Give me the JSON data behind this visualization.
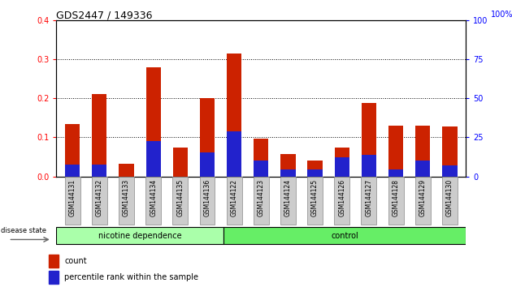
{
  "title": "GDS2447 / 149336",
  "samples": [
    "GSM144131",
    "GSM144132",
    "GSM144133",
    "GSM144134",
    "GSM144135",
    "GSM144136",
    "GSM144122",
    "GSM144123",
    "GSM144124",
    "GSM144125",
    "GSM144126",
    "GSM144127",
    "GSM144128",
    "GSM144129",
    "GSM144130"
  ],
  "count_values": [
    0.135,
    0.21,
    0.033,
    0.28,
    0.075,
    0.2,
    0.315,
    0.096,
    0.058,
    0.04,
    0.075,
    0.188,
    0.13,
    0.13,
    0.128
  ],
  "percentile_values": [
    0.03,
    0.03,
    0.0,
    0.09,
    0.0,
    0.062,
    0.115,
    0.04,
    0.018,
    0.018,
    0.05,
    0.055,
    0.018,
    0.04,
    0.028
  ],
  "count_color": "#cc2200",
  "percentile_color": "#2222cc",
  "ylim": [
    0,
    0.4
  ],
  "yticks_left": [
    0,
    0.1,
    0.2,
    0.3,
    0.4
  ],
  "yticks_right": [
    0,
    25,
    50,
    75,
    100
  ],
  "dotted_grid": [
    0.1,
    0.2,
    0.3
  ],
  "group_labels": [
    "nicotine dependence",
    "control"
  ],
  "nd_count": 6,
  "bar_width": 0.55,
  "disease_state_label": "disease state",
  "legend_items": [
    "count",
    "percentile rank within the sample"
  ],
  "tick_bg_color": "#cccccc",
  "nd_color": "#aaffaa",
  "ctrl_color": "#66ee66"
}
